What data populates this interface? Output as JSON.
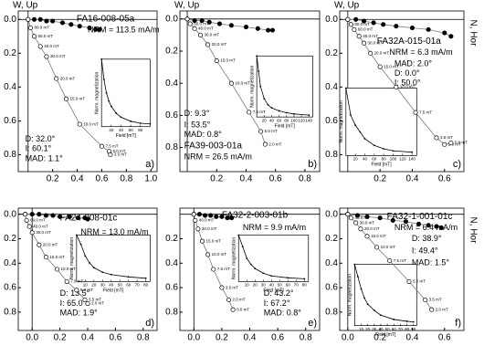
{
  "chart_data": [
    {
      "type": "zijderveld",
      "title": "FA16-008-05a",
      "nrm": "NRM = 113.5 mA/m",
      "d": "D: 32.0°",
      "i": "I: 60.1°",
      "mad": "MAD: 1.1°",
      "panel_label": "a)",
      "up_label": "W, Up",
      "y_inverted": true,
      "xlim": [
        -0.08,
        1.05
      ],
      "ylim": [
        -0.05,
        0.9
      ],
      "xticks": [
        0.2,
        0.4,
        0.6,
        0.8,
        {
          "value": 1,
          "label": "1.0"
        }
      ],
      "yticks": [
        {
          "value": 0,
          "label": "0.0"
        },
        0.2,
        0.4,
        0.6,
        0.8
      ],
      "series": [
        {
          "marker": "filled",
          "color": "#000000",
          "x": [
            0,
            0.05,
            0.1,
            0.15,
            0.2,
            0.28,
            0.35,
            0.42,
            0.5,
            0.55,
            0.58
          ],
          "values": [
            0,
            0,
            0,
            0.01,
            0.01,
            0.02,
            0.03,
            0.04,
            0.05,
            0.06,
            0.06
          ]
        },
        {
          "marker": "open",
          "color": "#000000",
          "x": [
            0,
            0.02,
            0.05,
            0.1,
            0.15,
            0.23,
            0.31,
            0.42,
            0.6,
            0.66,
            0.67
          ],
          "values": [
            0,
            0.05,
            0.1,
            0.16,
            0.22,
            0.35,
            0.47,
            0.62,
            0.75,
            0.78,
            0.8
          ],
          "labels": [
            null,
            "80.0 mT",
            "60.0 mT",
            "40.0 mT",
            "30.0 mT",
            "20.0 mT",
            "15.0 mT",
            "10.0 mT",
            "7.5 mT",
            "5.0 mT",
            "3.5 mT"
          ]
        }
      ],
      "inset": {
        "type": "line",
        "xlabel": "Field [mT]",
        "ylabel": "Norm. magnetization",
        "xlim": [
          0,
          100
        ],
        "ylim": [
          0,
          1
        ],
        "xticks": [
          20,
          40,
          60,
          80
        ],
        "x": [
          0,
          5,
          10,
          15,
          20,
          30,
          40,
          60,
          80,
          100
        ],
        "values": [
          1,
          0.7,
          0.5,
          0.38,
          0.3,
          0.2,
          0.14,
          0.08,
          0.05,
          0.04
        ]
      }
    },
    {
      "type": "zijderveld",
      "title": "FA39-003-01a",
      "nrm": "NRM = 26.5 mA/m",
      "d": "D: 9.3°",
      "i": "I: 53.5°",
      "mad": "MAD: 0.8°",
      "panel_label": "b)",
      "up_label": "W, Up",
      "y_inverted": true,
      "xlim": [
        -0.05,
        0.9
      ],
      "ylim": [
        -0.05,
        0.95
      ],
      "xticks": [
        0.2,
        0.4,
        0.6,
        0.8
      ],
      "yticks": [
        {
          "value": 0,
          "label": "0.0"
        },
        0.2,
        0.4,
        0.6,
        0.8
      ],
      "series": [
        {
          "marker": "filled",
          "color": "#000000",
          "x": [
            0,
            0.05,
            0.1,
            0.15,
            0.22,
            0.3,
            0.4,
            0.48,
            0.55,
            0.58
          ],
          "values": [
            0,
            0.01,
            0.01,
            0.02,
            0.03,
            0.04,
            0.05,
            0.06,
            0.07,
            0.07
          ]
        },
        {
          "marker": "open",
          "color": "#000000",
          "x": [
            0,
            0.02,
            0.05,
            0.09,
            0.14,
            0.2,
            0.3,
            0.42,
            0.5,
            0.53
          ],
          "values": [
            0,
            0.03,
            0.06,
            0.1,
            0.16,
            0.26,
            0.4,
            0.58,
            0.7,
            0.78
          ],
          "labels": [
            null,
            "60.0 mT",
            "40.0 mT",
            "30.0 mT",
            "20.0 mT",
            "15.0 mT",
            "10.0 mT",
            "7.5 mT",
            "5.0 mT",
            "2.0 mT"
          ]
        }
      ],
      "inset": {
        "type": "line",
        "xlabel": "Field [mT]",
        "ylabel": "Norm. magnetization",
        "xlim": [
          0,
          150
        ],
        "ylim": [
          0,
          1
        ],
        "xticks": [
          20,
          40,
          60,
          80,
          100,
          120,
          140
        ],
        "x": [
          0,
          5,
          10,
          20,
          30,
          40,
          60,
          80,
          100,
          140
        ],
        "values": [
          1,
          0.75,
          0.5,
          0.3,
          0.2,
          0.15,
          0.1,
          0.07,
          0.05,
          0.03
        ]
      }
    },
    {
      "type": "zijderveld",
      "title": "FA32A-015-01a",
      "nrm": "NRM = 6.3 mA/m",
      "d": "D: 0.0°",
      "i": "I: 50.0°",
      "mad": "MAD: 2.0°",
      "panel_label": "c)",
      "up_label": "W, Up",
      "hor_label": "N, Hor",
      "y_inverted": true,
      "xlim": [
        -0.05,
        0.72
      ],
      "ylim": [
        -0.05,
        0.9
      ],
      "xticks": [
        0.2,
        0.4,
        0.6
      ],
      "yticks": [
        {
          "value": 0,
          "label": "0.0"
        },
        0.2,
        0.4,
        0.6,
        0.8
      ],
      "series": [
        {
          "marker": "filled",
          "color": "#000000",
          "x": [
            0,
            0.05,
            0.1,
            0.16,
            0.22,
            0.3,
            0.4,
            0.5,
            0.6,
            0.64
          ],
          "values": [
            0,
            0,
            0.01,
            0.02,
            0.03,
            0.04,
            0.05,
            0.06,
            0.08,
            0.1
          ]
        },
        {
          "marker": "open",
          "color": "#000000",
          "x": [
            0,
            0.02,
            0.04,
            0.07,
            0.1,
            0.14,
            0.2,
            0.3,
            0.42,
            0.55,
            0.6,
            0.64
          ],
          "values": [
            0,
            0.03,
            0.06,
            0.1,
            0.14,
            0.2,
            0.28,
            0.4,
            0.55,
            0.7,
            0.74,
            0.73
          ],
          "labels": [
            null,
            "80.0 mT",
            "60.0 mT",
            "40.0 mT",
            "30.0 mT",
            "20.0 mT",
            "15.0 mT",
            "10.0 mT",
            "7.5 mT",
            "3.5 mT",
            "2.0 mT",
            "0.0 mT"
          ]
        }
      ],
      "inset": {
        "type": "line",
        "xlabel": "Field [mT]",
        "ylabel": "Norm. magnetization",
        "xlim": [
          0,
          150
        ],
        "ylim": [
          0,
          1
        ],
        "xticks": [
          20,
          40,
          60,
          80,
          100,
          120,
          140
        ],
        "x": [
          0,
          10,
          20,
          30,
          40,
          60,
          80,
          100,
          140
        ],
        "values": [
          1,
          0.6,
          0.45,
          0.35,
          0.25,
          0.15,
          0.1,
          0.07,
          0.05
        ]
      }
    },
    {
      "type": "zijderveld",
      "title": "FA24-008-01c",
      "nrm": "NRM = 13.0 mA/m",
      "d": "D: 13.5°",
      "i": "I: 65.0°",
      "mad": "MAD: 1.9°",
      "panel_label": "d)",
      "y_inverted": true,
      "xlim": [
        -0.1,
        0.9
      ],
      "ylim": [
        -0.05,
        0.95
      ],
      "xticks": [
        {
          "value": 0,
          "label": "0.0"
        },
        0.2,
        0.4,
        0.6,
        0.8
      ],
      "yticks": [
        {
          "value": 0,
          "label": "0.0"
        },
        0.2,
        0.4,
        0.6,
        0.8
      ],
      "series": [
        {
          "marker": "filled",
          "color": "#000000",
          "x": [
            -0.05,
            0,
            0.05,
            0.1,
            0.15,
            0.2,
            0.27,
            0.33,
            0.38,
            0.4
          ],
          "values": [
            0,
            0,
            0,
            0.01,
            0.01,
            0.02,
            0.02,
            0.03,
            0.03,
            0.04
          ]
        },
        {
          "marker": "open",
          "color": "#000000",
          "x": [
            -0.05,
            -0.04,
            -0.02,
            0,
            0.05,
            0.1,
            0.18,
            0.25,
            0.32,
            0.38,
            0.4
          ],
          "values": [
            0,
            0.05,
            0.1,
            0.15,
            0.25,
            0.35,
            0.45,
            0.55,
            0.62,
            0.7,
            0.73
          ],
          "labels": [
            null,
            "60.0 mT",
            "40.0 mT",
            "30.0 mT",
            "20.0 mT",
            "15.0 mT",
            "10.0 mT",
            "7.5 mT",
            "5.0 mT",
            "3.5 mT",
            "2.0 mT"
          ]
        }
      ],
      "inset": {
        "type": "line",
        "xlabel": "Field [mT]",
        "ylabel": "Norm. magnetization",
        "xlim": [
          0,
          85
        ],
        "ylim": [
          0,
          1
        ],
        "xticks": [
          10,
          20,
          30,
          40,
          50,
          60,
          70,
          80
        ],
        "x": [
          0,
          5,
          10,
          15,
          20,
          30,
          40,
          60,
          80
        ],
        "values": [
          1,
          0.8,
          0.55,
          0.4,
          0.3,
          0.2,
          0.15,
          0.1,
          0.07
        ]
      }
    },
    {
      "type": "zijderveld",
      "title": "FA32-2-003-01b",
      "nrm": "NRM = 9.9 mA/m",
      "d": "D: 43.2°",
      "i": "I: 67.2°",
      "mad": "MAD: 0.8°",
      "panel_label": "e)",
      "y_inverted": true,
      "xlim": [
        -0.1,
        0.9
      ],
      "ylim": [
        -0.05,
        0.95
      ],
      "xticks": [
        {
          "value": 0,
          "label": "0.0"
        },
        0.2,
        0.4,
        0.6,
        0.8
      ],
      "yticks": [
        0.2,
        0.4,
        0.6,
        0.8
      ],
      "series": [
        {
          "marker": "filled",
          "color": "#000000",
          "x": [
            0,
            0.04,
            0.08,
            0.12,
            0.16,
            0.2,
            0.24,
            0.27
          ],
          "values": [
            0,
            0,
            0.01,
            0.01,
            0.02,
            0.02,
            0.03,
            0.03
          ]
        },
        {
          "marker": "open",
          "color": "#000000",
          "x": [
            0,
            0.01,
            0.03,
            0.06,
            0.1,
            0.14,
            0.2,
            0.25,
            0.28
          ],
          "values": [
            0,
            0.05,
            0.12,
            0.22,
            0.33,
            0.45,
            0.6,
            0.7,
            0.78
          ],
          "labels": [
            null,
            "40.0 mT",
            "20.0 mT",
            "15.0 mT",
            "10.0 mT",
            "7.5 mT",
            "3.5 mT",
            "2.0 mT",
            "0.0 mT"
          ]
        }
      ],
      "inset": {
        "type": "line",
        "xlabel": "Field [mT]",
        "ylabel": "Norm. magnetization",
        "xlim": [
          0,
          85
        ],
        "ylim": [
          0,
          1
        ],
        "xticks": [
          10,
          20,
          30,
          40,
          50,
          60,
          70,
          80
        ],
        "x": [
          0,
          5,
          10,
          15,
          20,
          30,
          40,
          60,
          80
        ],
        "values": [
          1,
          0.75,
          0.5,
          0.37,
          0.28,
          0.18,
          0.12,
          0.08,
          0.06
        ]
      }
    },
    {
      "type": "zijderveld",
      "title": "FA32-1-001-01c",
      "nrm": "NRM = 6.4 mA/m",
      "d": "D: 38.9°",
      "i": "I: 49.4°",
      "mad": "MAD: 1.5°",
      "panel_label": "f)",
      "hor_label": "N, Hor",
      "y_inverted": true,
      "xlim": [
        -0.05,
        0.72
      ],
      "ylim": [
        -0.05,
        0.95
      ],
      "xticks": [
        {
          "value": 0,
          "label": "0.0"
        },
        0.2,
        0.4,
        0.6
      ],
      "yticks": [
        {
          "value": 0,
          "label": "0.0"
        },
        0.2,
        0.4,
        0.6,
        0.8
      ],
      "series": [
        {
          "marker": "filled",
          "color": "#000000",
          "x": [
            0,
            0.06,
            0.12,
            0.2,
            0.28,
            0.36,
            0.44,
            0.5,
            0.55,
            0.58
          ],
          "values": [
            0,
            0.01,
            0.02,
            0.03,
            0.05,
            0.06,
            0.08,
            0.09,
            0.1,
            0.11
          ]
        },
        {
          "marker": "open",
          "color": "#000000",
          "x": [
            0,
            0.02,
            0.05,
            0.08,
            0.12,
            0.18,
            0.26,
            0.38,
            0.48,
            0.52
          ],
          "values": [
            0,
            0.03,
            0.07,
            0.12,
            0.18,
            0.27,
            0.38,
            0.55,
            0.7,
            0.78
          ],
          "labels": [
            null,
            "40.0 mT",
            "30.0 mT",
            "20.0 mT",
            "15.0 mT",
            "10.0 mT",
            "7.5 mT",
            "5.0 mT",
            "3.5 mT",
            "2.0 mT"
          ]
        }
      ],
      "inset": {
        "type": "line",
        "xlabel": "Field [mT]",
        "ylabel": "Norm. magnetization",
        "xlim": [
          0,
          95
        ],
        "ylim": [
          0,
          1
        ],
        "xticks": [
          10,
          20,
          30,
          40,
          50,
          60,
          70,
          80,
          90
        ],
        "x": [
          0,
          5,
          10,
          15,
          20,
          30,
          40,
          60,
          80,
          90
        ],
        "values": [
          1,
          0.8,
          0.6,
          0.45,
          0.35,
          0.25,
          0.17,
          0.1,
          0.07,
          0.06
        ]
      }
    }
  ]
}
